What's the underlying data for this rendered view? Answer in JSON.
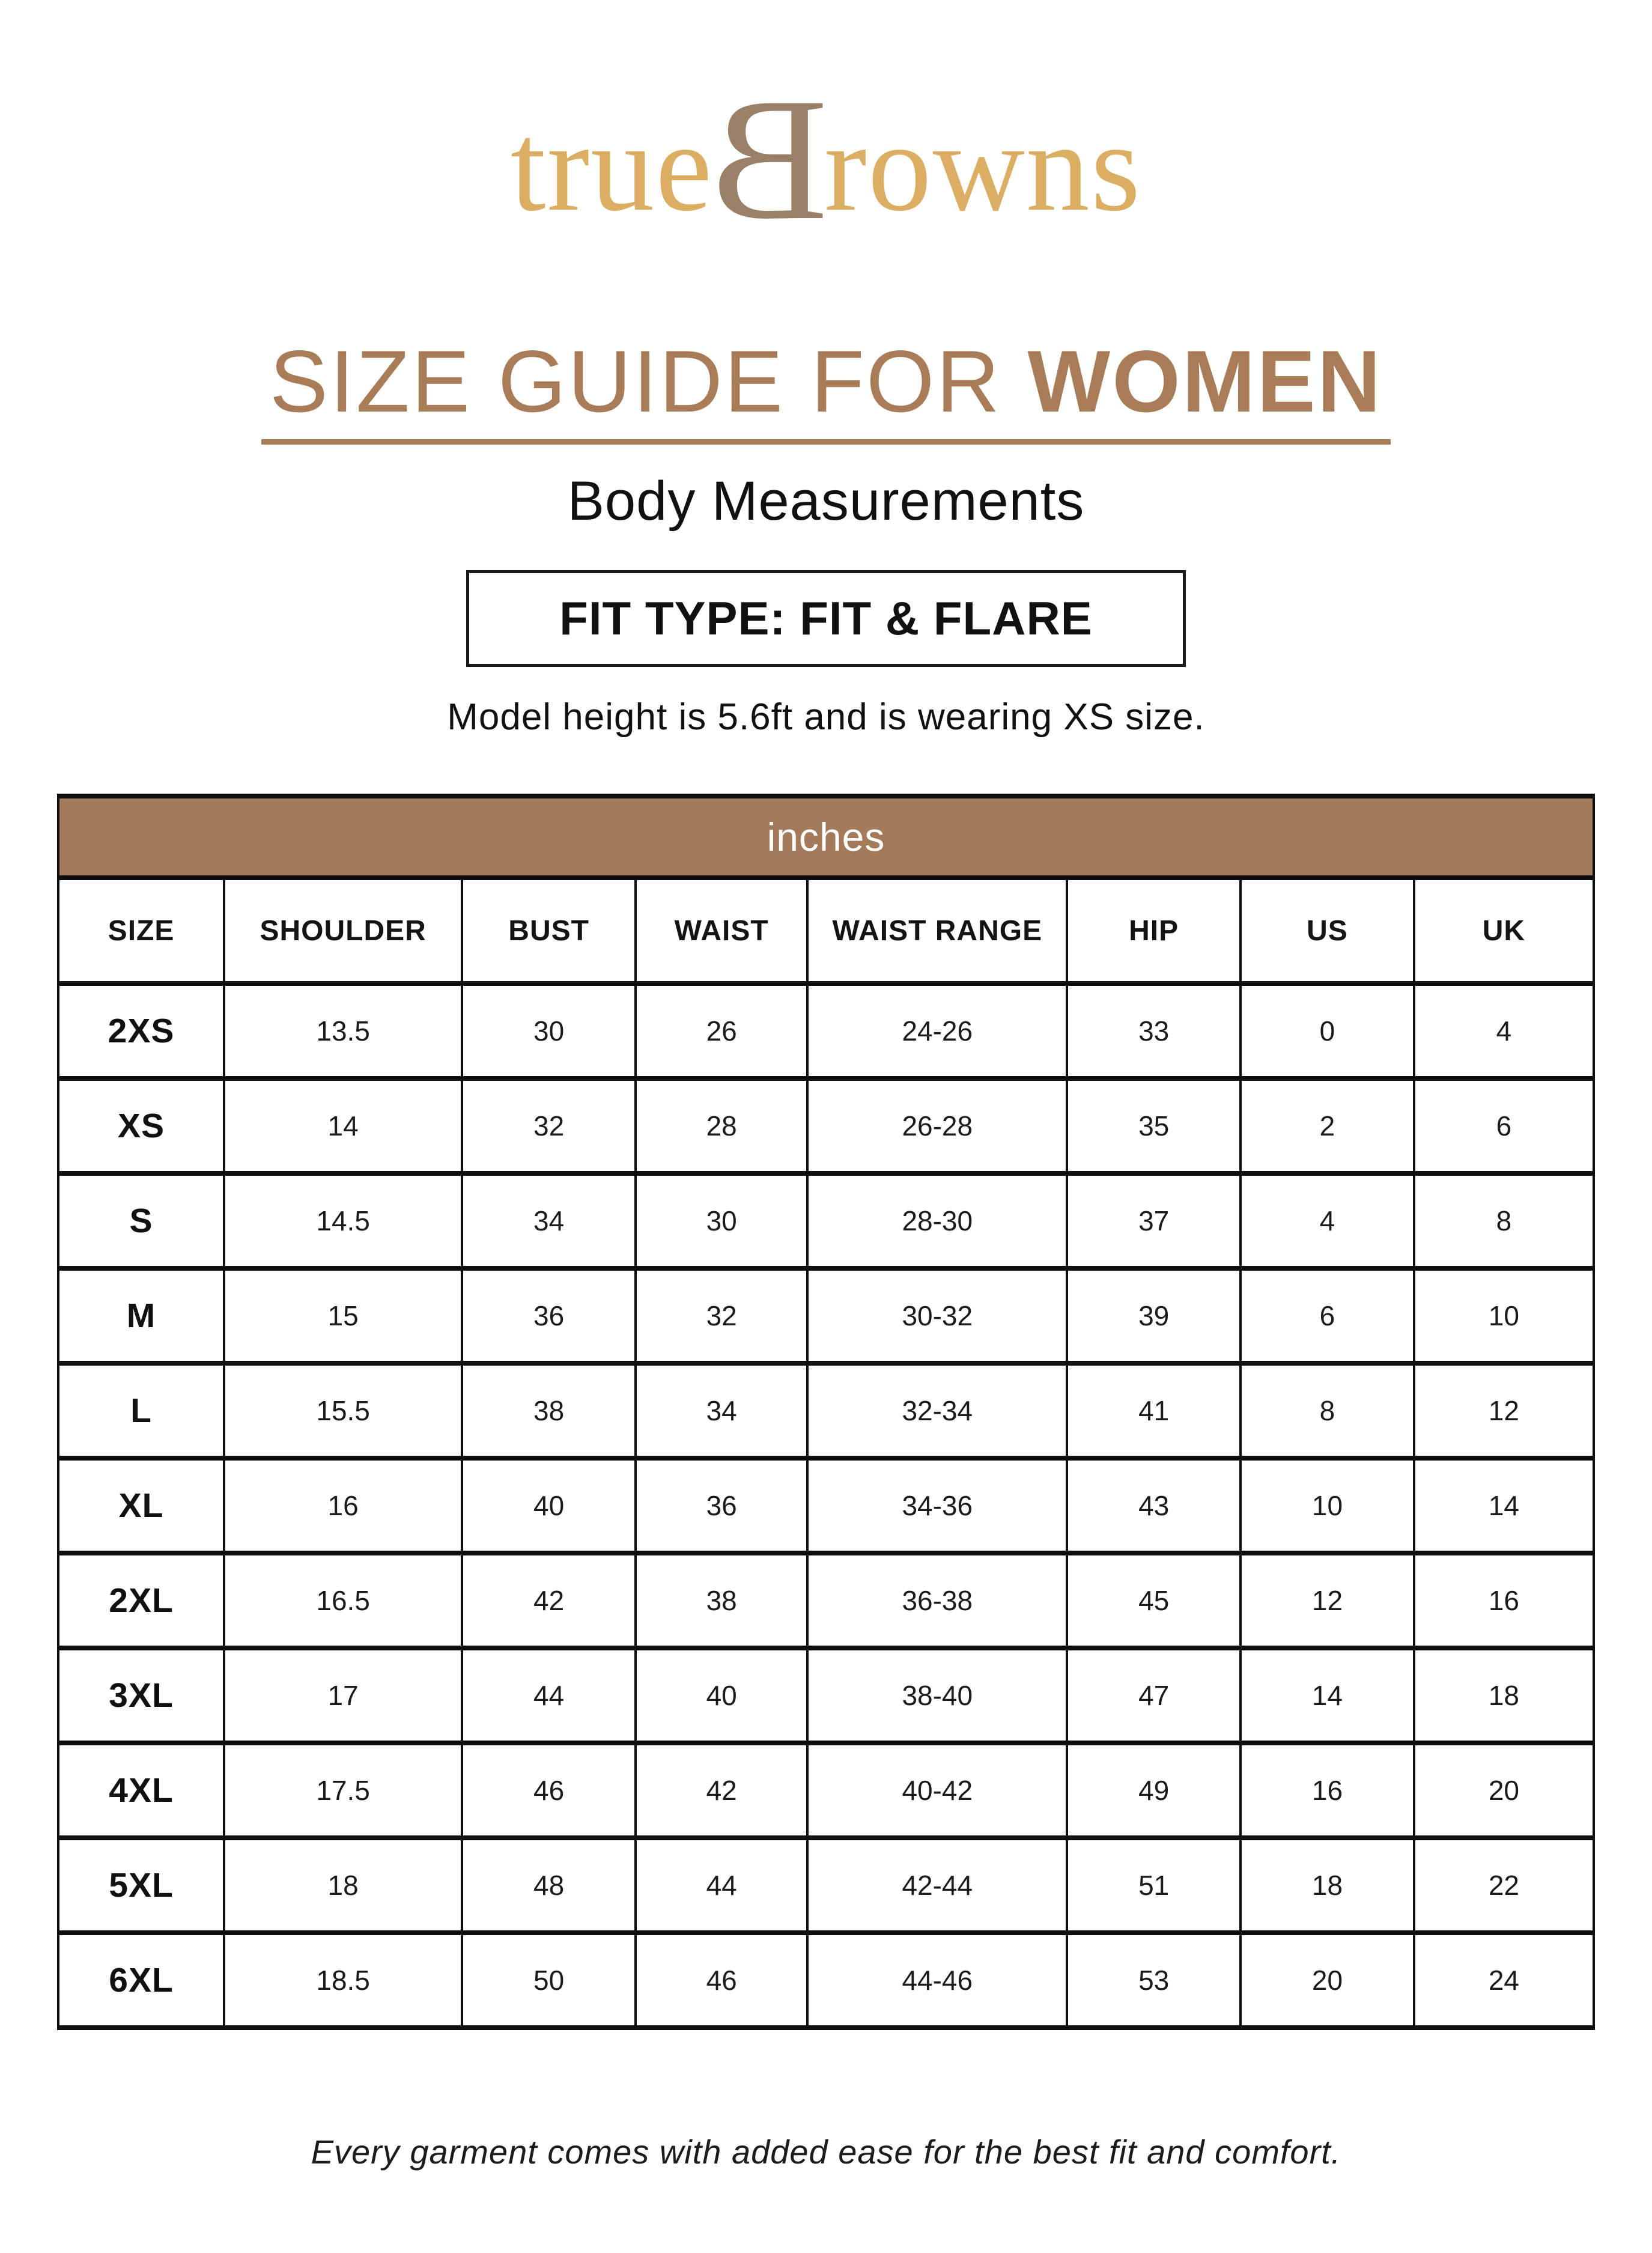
{
  "brand": {
    "logo_prefix": "true",
    "logo_b": "B",
    "logo_suffix": "rowns"
  },
  "header": {
    "title_regular": "SIZE GUIDE FOR ",
    "title_bold": "WOMEN",
    "subtitle": "Body Measurements",
    "fit_type": "FIT TYPE: FIT & FLARE",
    "model_note": "Model height is 5.6ft and is wearing XS size."
  },
  "table": {
    "unit_header": "inches",
    "columns": [
      "SIZE",
      "SHOULDER",
      "BUST",
      "WAIST",
      "WAIST RANGE",
      "HIP",
      "US",
      "UK"
    ],
    "column_widths_percent": [
      10.8,
      15.5,
      11.3,
      11.2,
      16.9,
      11.3,
      11.3,
      11.7
    ],
    "rows": [
      [
        "2XS",
        "13.5",
        "30",
        "26",
        "24-26",
        "33",
        "0",
        "4"
      ],
      [
        "XS",
        "14",
        "32",
        "28",
        "26-28",
        "35",
        "2",
        "6"
      ],
      [
        "S",
        "14.5",
        "34",
        "30",
        "28-30",
        "37",
        "4",
        "8"
      ],
      [
        "M",
        "15",
        "36",
        "32",
        "30-32",
        "39",
        "6",
        "10"
      ],
      [
        "L",
        "15.5",
        "38",
        "34",
        "32-34",
        "41",
        "8",
        "12"
      ],
      [
        "XL",
        "16",
        "40",
        "36",
        "34-36",
        "43",
        "10",
        "14"
      ],
      [
        "2XL",
        "16.5",
        "42",
        "38",
        "36-38",
        "45",
        "12",
        "16"
      ],
      [
        "3XL",
        "17",
        "44",
        "40",
        "38-40",
        "47",
        "14",
        "18"
      ],
      [
        "4XL",
        "17.5",
        "46",
        "42",
        "40-42",
        "49",
        "16",
        "20"
      ],
      [
        "5XL",
        "18",
        "48",
        "44",
        "42-44",
        "51",
        "18",
        "22"
      ],
      [
        "6XL",
        "18.5",
        "50",
        "46",
        "44-46",
        "53",
        "20",
        "24"
      ]
    ]
  },
  "footer": {
    "note": "Every garment comes with added ease for the best fit and comfort."
  },
  "colors": {
    "gold": "#DCAE63",
    "logo_b_brown": "#9A8066",
    "title_brown": "#A87C57",
    "table_header_brown": "#A47B5A"
  }
}
